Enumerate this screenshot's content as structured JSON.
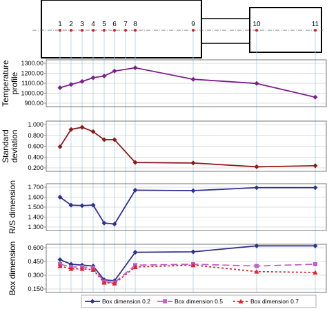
{
  "chart_data": [
    {
      "type": "diagram",
      "positions": [
        "1",
        "2",
        "3",
        "4",
        "5",
        "6",
        "7",
        "8",
        "9",
        "10",
        "11"
      ]
    },
    {
      "type": "line",
      "ylabel": "Temperature profile",
      "ylim": [
        900,
        1300
      ],
      "yticks": [
        "900.00",
        "1000.00",
        "1100.00",
        "1200.00",
        "1300.00"
      ],
      "grid": true,
      "series": [
        {
          "name": "",
          "color": "#7b1f8c",
          "marker": "diamond",
          "x": [
            1,
            2,
            3,
            4,
            5,
            6,
            8,
            9,
            10,
            11
          ],
          "values": [
            1055,
            1088,
            1118,
            1155,
            1172,
            1222,
            1255,
            1140,
            1098,
            960
          ]
        }
      ]
    },
    {
      "type": "line",
      "ylabel": "Standard deviation",
      "ylim": [
        0.2,
        1.0
      ],
      "yticks": [
        "0.200",
        "0.400",
        "0.600",
        "0.800",
        "1.000"
      ],
      "grid": true,
      "series": [
        {
          "name": "",
          "color": "#8b1a1a",
          "marker": "diamond",
          "x": [
            1,
            2,
            3,
            4,
            5,
            6,
            8,
            9,
            10,
            11
          ],
          "values": [
            0.59,
            0.91,
            0.95,
            0.87,
            0.72,
            0.72,
            0.3,
            0.29,
            0.22,
            0.24
          ]
        }
      ]
    },
    {
      "type": "line",
      "ylabel": "R/S dimension",
      "ylim": [
        1.3,
        1.7
      ],
      "yticks": [
        "1.300",
        "1.400",
        "1.500",
        "1.600",
        "1.700"
      ],
      "grid": true,
      "series": [
        {
          "name": "",
          "color": "#2e3192",
          "marker": "diamond",
          "x": [
            1,
            2,
            3,
            4,
            5,
            6,
            8,
            9,
            10,
            11
          ],
          "values": [
            1.6,
            1.52,
            1.515,
            1.52,
            1.34,
            1.33,
            1.67,
            1.665,
            1.695,
            1.695
          ]
        }
      ]
    },
    {
      "type": "line",
      "ylabel": "Box dimension",
      "ylim": [
        0.15,
        0.6
      ],
      "yticks": [
        "0.150",
        "0.300",
        "0.450",
        "0.600"
      ],
      "grid": true,
      "series": [
        {
          "name": "Box dimension 0.2",
          "color": "#2e3192",
          "marker": "diamond",
          "dash": "",
          "x": [
            1,
            2,
            3,
            4,
            5,
            6,
            8,
            9,
            10,
            11
          ],
          "values": [
            0.47,
            0.42,
            0.41,
            0.4,
            0.25,
            0.24,
            0.55,
            0.555,
            0.62,
            0.62
          ]
        },
        {
          "name": "Box dimension 0.5",
          "color": "#c060c8",
          "marker": "square",
          "dash": "10,5",
          "x": [
            1,
            2,
            3,
            4,
            5,
            6,
            8,
            9,
            10,
            11
          ],
          "values": [
            0.42,
            0.39,
            0.39,
            0.38,
            0.23,
            0.22,
            0.41,
            0.42,
            0.4,
            0.42
          ]
        },
        {
          "name": "Box dimension 0.7",
          "color": "#e8202a",
          "marker": "triangle",
          "dash": "3,3",
          "x": [
            1,
            2,
            3,
            4,
            5,
            6,
            8,
            9,
            10,
            11
          ],
          "values": [
            0.4,
            0.37,
            0.37,
            0.36,
            0.22,
            0.21,
            0.39,
            0.41,
            0.34,
            0.33
          ]
        }
      ]
    }
  ]
}
